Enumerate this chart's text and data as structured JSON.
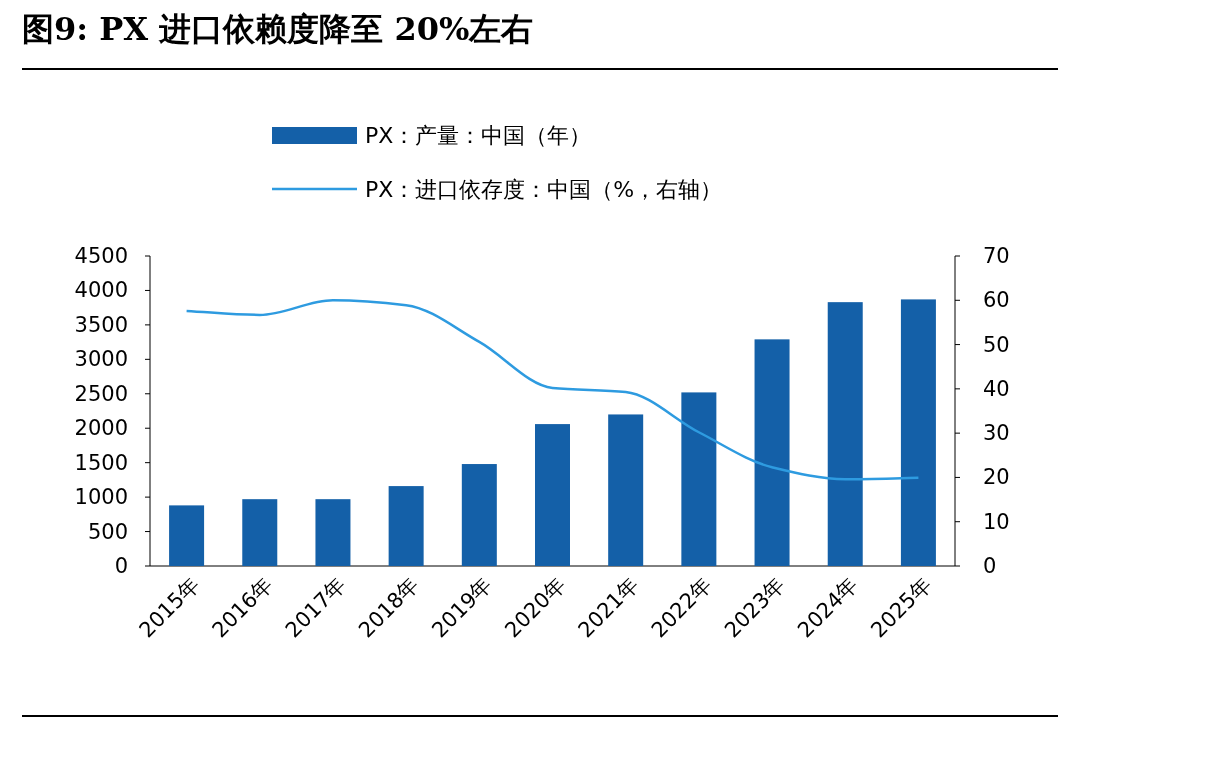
{
  "chart_data": {
    "type": "bar",
    "title": "图9:  PX 进口依赖度降至 20%左右",
    "categories": [
      "2015年",
      "2016年",
      "2017年",
      "2018年",
      "2019年",
      "2020年",
      "2021年",
      "2022年",
      "2023年",
      "2024年",
      "2025年"
    ],
    "series": [
      {
        "name": "PX：产量：中国（年）",
        "color": "#1460a8",
        "values": [
          880,
          970,
          970,
          1160,
          1480,
          2060,
          2200,
          2520,
          3290,
          3830,
          3870
        ]
      },
      {
        "name": "PX：进口依存度：中国（%，右轴）",
        "type": "line",
        "axis": "y2",
        "color": "#2e9be0",
        "values": [
          57.6,
          56.7,
          60.0,
          58.9,
          50.6,
          40.2,
          39.3,
          30.2,
          22.3,
          19.6,
          19.9
        ]
      }
    ],
    "ylim": [
      0,
      4500
    ],
    "yticks": [
      0,
      500,
      1000,
      1500,
      2000,
      2500,
      3000,
      3500,
      4000,
      4500
    ],
    "y2lim": [
      0,
      70
    ],
    "y2ticks": [
      0,
      10,
      20,
      30,
      40,
      50,
      60,
      70
    ],
    "legend": "top",
    "grid": false,
    "marker": "none"
  }
}
